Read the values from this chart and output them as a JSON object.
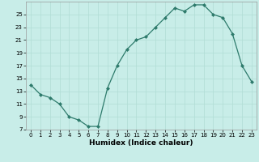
{
  "x": [
    0,
    1,
    2,
    3,
    4,
    5,
    6,
    7,
    8,
    9,
    10,
    11,
    12,
    13,
    14,
    15,
    16,
    17,
    18,
    19,
    20,
    21,
    22,
    23
  ],
  "y": [
    14.0,
    12.5,
    12.0,
    11.0,
    9.0,
    8.5,
    7.5,
    7.5,
    13.5,
    17.0,
    19.5,
    21.0,
    21.5,
    23.0,
    24.5,
    26.0,
    25.5,
    26.5,
    26.5,
    25.0,
    24.5,
    22.0,
    17.0,
    14.5
  ],
  "xlabel": "Humidex (Indice chaleur)",
  "ylim": [
    7,
    27
  ],
  "xlim": [
    -0.5,
    23.5
  ],
  "yticks": [
    7,
    9,
    11,
    13,
    15,
    17,
    19,
    21,
    23,
    25
  ],
  "xticks": [
    0,
    1,
    2,
    3,
    4,
    5,
    6,
    7,
    8,
    9,
    10,
    11,
    12,
    13,
    14,
    15,
    16,
    17,
    18,
    19,
    20,
    21,
    22,
    23
  ],
  "line_color": "#2d7a6b",
  "marker_color": "#2d7a6b",
  "bg_color": "#c8ede8",
  "grid_color": "#b0ddd5",
  "xlabel_fontsize": 6.5,
  "tick_fontsize": 5.0
}
